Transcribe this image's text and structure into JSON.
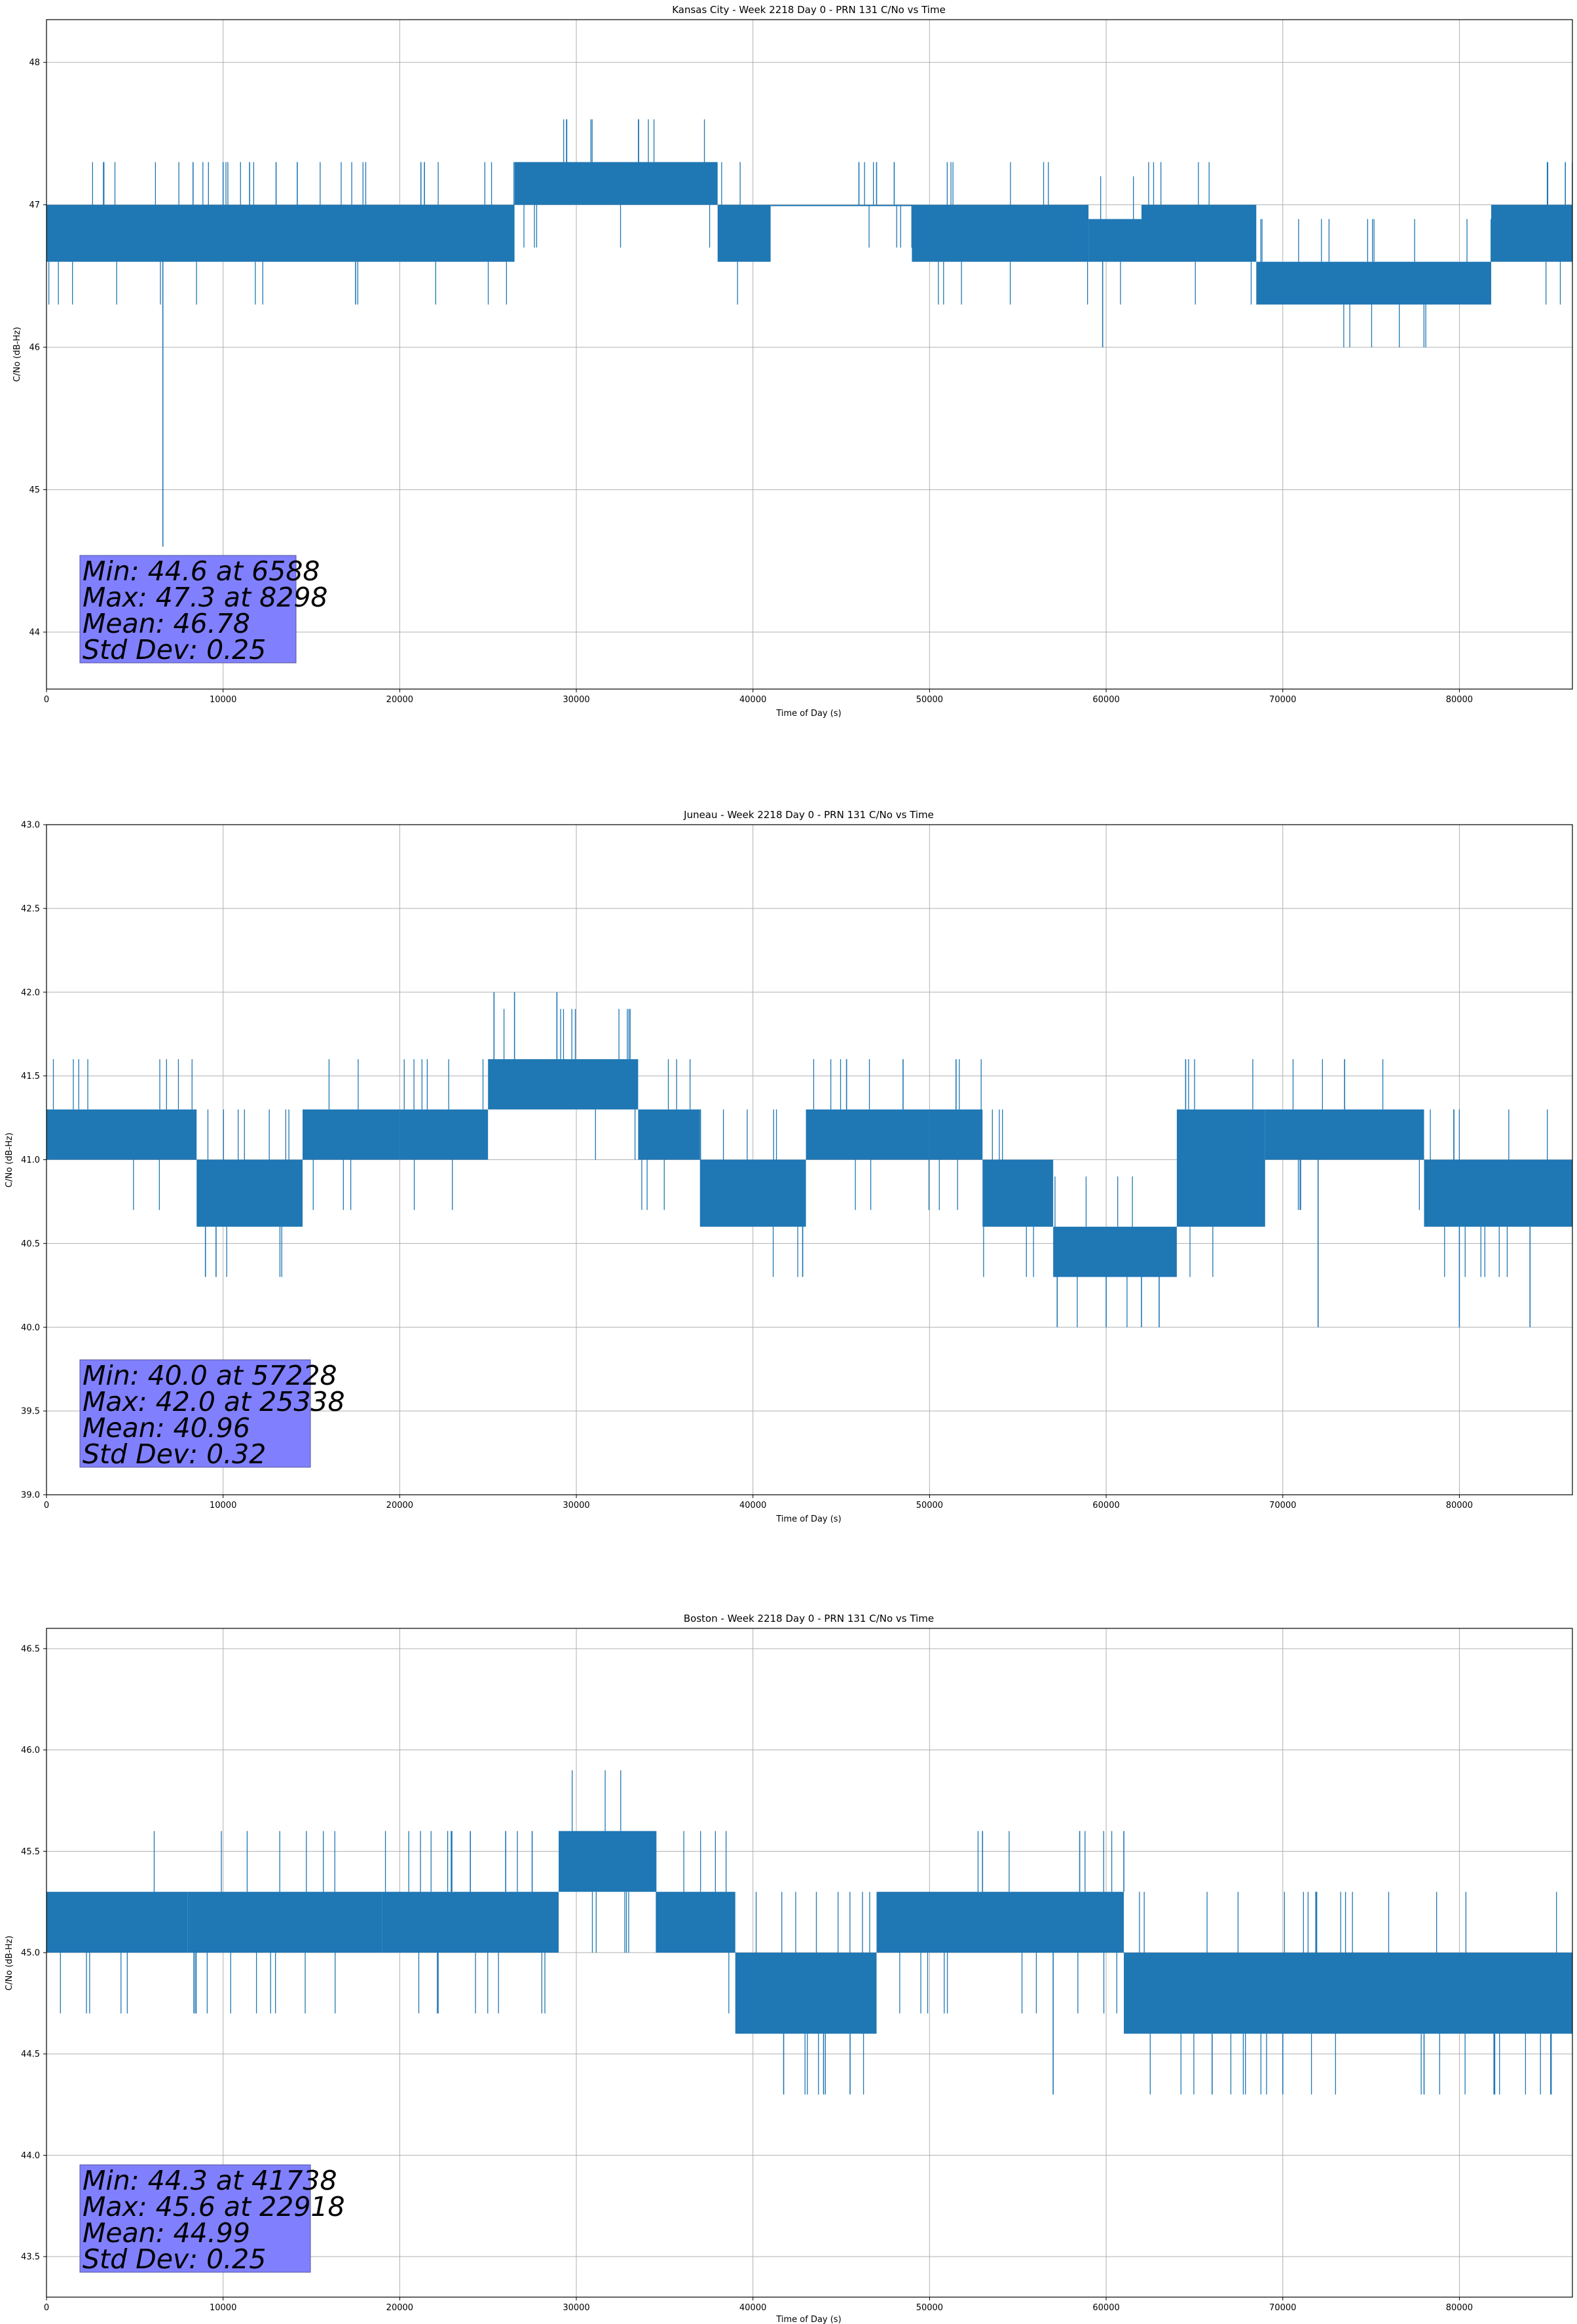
{
  "figure": {
    "line_color": "#1f77b4",
    "grid_color": "#b0b0b0",
    "stats_box_color": "#8080ff"
  },
  "chart_data": [
    {
      "type": "line",
      "title": "Kansas City - Week 2218 Day 0 - PRN 131 C/No vs Time",
      "xlabel": "Time of Day (s)",
      "ylabel": "C/No (dB-Hz)",
      "xlim": [
        0,
        86400
      ],
      "ylim": [
        43.6,
        48.3
      ],
      "xticks": [
        0,
        10000,
        20000,
        30000,
        40000,
        50000,
        60000,
        70000,
        80000
      ],
      "xtick_labels": [
        "0",
        "10000",
        "20000",
        "30000",
        "40000",
        "50000",
        "60000",
        "70000",
        "80000"
      ],
      "yticks": [
        44,
        45,
        46,
        47,
        48
      ],
      "ytick_labels": [
        "44",
        "45",
        "46",
        "47",
        "48"
      ],
      "grid": true,
      "series": [
        {
          "bands": [
            {
              "x": [
                0,
                26500
              ],
              "y": [
                46.6,
                47.0
              ]
            },
            {
              "x": [
                26500,
                38000
              ],
              "y": [
                47.0,
                47.3
              ]
            },
            {
              "x": [
                38000,
                41000
              ],
              "y": [
                46.6,
                47.0
              ]
            },
            {
              "x": [
                41000,
                49000
              ],
              "y": [
                47.0,
                47.0
              ]
            },
            {
              "x": [
                49000,
                59000
              ],
              "y": [
                46.6,
                47.0
              ]
            },
            {
              "x": [
                59000,
                62000
              ],
              "y": [
                46.6,
                46.9
              ]
            },
            {
              "x": [
                62000,
                68500
              ],
              "y": [
                46.6,
                47.0
              ]
            },
            {
              "x": [
                68500,
                81800
              ],
              "y": [
                46.3,
                46.6
              ]
            },
            {
              "x": [
                81800,
                86400
              ],
              "y": [
                46.6,
                47.0
              ]
            }
          ],
          "spikes": [
            {
              "x": 6588,
              "y": 44.6
            },
            {
              "x": 59800,
              "y": 46.0
            },
            {
              "x": 17500,
              "y": 46.3
            },
            {
              "x": 8298,
              "y": 47.3
            },
            {
              "x": 10000,
              "y": 47.3
            },
            {
              "x": 11500,
              "y": 47.3
            },
            {
              "x": 13000,
              "y": 47.3
            },
            {
              "x": 14200,
              "y": 47.3
            },
            {
              "x": 21200,
              "y": 47.3
            },
            {
              "x": 21400,
              "y": 47.3
            },
            {
              "x": 46000,
              "y": 47.3
            },
            {
              "x": 47000,
              "y": 47.3
            },
            {
              "x": 48000,
              "y": 47.3
            },
            {
              "x": 85000,
              "y": 47.3
            },
            {
              "x": 86000,
              "y": 47.3
            }
          ]
        }
      ],
      "stats": {
        "lines": [
          "Min: 44.6 at 6588",
          "Max: 47.3 at 8298",
          "Mean: 46.78",
          "Std Dev: 0.25"
        ]
      }
    },
    {
      "type": "line",
      "title": "Juneau - Week 2218 Day 0 - PRN 131 C/No vs Time",
      "xlabel": "Time of Day (s)",
      "ylabel": "C/No (dB-Hz)",
      "xlim": [
        0,
        86400
      ],
      "ylim": [
        39.0,
        43.0
      ],
      "xticks": [
        0,
        10000,
        20000,
        30000,
        40000,
        50000,
        60000,
        70000,
        80000
      ],
      "xtick_labels": [
        "0",
        "10000",
        "20000",
        "30000",
        "40000",
        "50000",
        "60000",
        "70000",
        "80000"
      ],
      "yticks": [
        39.0,
        39.5,
        40.0,
        40.5,
        41.0,
        41.5,
        42.0,
        42.5,
        43.0
      ],
      "ytick_labels": [
        "39.0",
        "39.5",
        "40.0",
        "40.5",
        "41.0",
        "41.5",
        "42.0",
        "42.5",
        "43.0"
      ],
      "grid": true,
      "series": [
        {
          "bands": [
            {
              "x": [
                0,
                8500
              ],
              "y": [
                41.0,
                41.3
              ]
            },
            {
              "x": [
                8500,
                14500
              ],
              "y": [
                40.6,
                41.0
              ]
            },
            {
              "x": [
                14500,
                20000
              ],
              "y": [
                41.0,
                41.3
              ]
            },
            {
              "x": [
                20000,
                25000
              ],
              "y": [
                41.0,
                41.3
              ]
            },
            {
              "x": [
                25000,
                33500
              ],
              "y": [
                41.3,
                41.6
              ]
            },
            {
              "x": [
                33500,
                37000
              ],
              "y": [
                41.0,
                41.3
              ]
            },
            {
              "x": [
                37000,
                43000
              ],
              "y": [
                40.6,
                41.0
              ]
            },
            {
              "x": [
                43000,
                50000
              ],
              "y": [
                41.0,
                41.3
              ]
            },
            {
              "x": [
                50000,
                53000
              ],
              "y": [
                41.0,
                41.3
              ]
            },
            {
              "x": [
                53000,
                57000
              ],
              "y": [
                40.6,
                41.0
              ]
            },
            {
              "x": [
                57000,
                64000
              ],
              "y": [
                40.3,
                40.6
              ]
            },
            {
              "x": [
                64000,
                69000
              ],
              "y": [
                40.6,
                41.3
              ]
            },
            {
              "x": [
                69000,
                78000
              ],
              "y": [
                41.0,
                41.3
              ]
            },
            {
              "x": [
                78000,
                86400
              ],
              "y": [
                40.6,
                41.0
              ]
            }
          ],
          "spikes": [
            {
              "x": 57228,
              "y": 40.0
            },
            {
              "x": 60000,
              "y": 40.0
            },
            {
              "x": 62000,
              "y": 40.0
            },
            {
              "x": 63000,
              "y": 40.0
            },
            {
              "x": 72000,
              "y": 40.0
            },
            {
              "x": 80000,
              "y": 40.0
            },
            {
              "x": 84000,
              "y": 40.0
            },
            {
              "x": 25338,
              "y": 42.0
            },
            {
              "x": 26500,
              "y": 42.0
            },
            {
              "x": 28900,
              "y": 42.0
            },
            {
              "x": 9000,
              "y": 40.3
            },
            {
              "x": 9600,
              "y": 40.3
            },
            {
              "x": 45300,
              "y": 41.6
            },
            {
              "x": 48500,
              "y": 41.6
            },
            {
              "x": 51500,
              "y": 41.6
            },
            {
              "x": 64500,
              "y": 41.6
            },
            {
              "x": 73500,
              "y": 41.6
            }
          ]
        }
      ],
      "stats": {
        "lines": [
          "Min: 40.0 at 57228",
          "Max: 42.0 at 25338",
          "Mean: 40.96",
          "Std Dev: 0.32"
        ]
      }
    },
    {
      "type": "line",
      "title": "Boston - Week 2218 Day 0 - PRN 131 C/No vs Time",
      "xlabel": "Time of Day (s)",
      "ylabel": "C/No (dB-Hz)",
      "xlim": [
        0,
        86400
      ],
      "ylim": [
        43.3,
        46.6
      ],
      "xticks": [
        0,
        10000,
        20000,
        30000,
        40000,
        50000,
        60000,
        70000,
        80000
      ],
      "xtick_labels": [
        "0",
        "10000",
        "20000",
        "30000",
        "40000",
        "50000",
        "60000",
        "70000",
        "80000"
      ],
      "yticks": [
        43.5,
        44.0,
        44.5,
        45.0,
        45.5,
        46.0,
        46.5
      ],
      "ytick_labels": [
        "43.5",
        "44.0",
        "44.5",
        "45.0",
        "45.5",
        "46.0",
        "46.5"
      ],
      "grid": true,
      "series": [
        {
          "bands": [
            {
              "x": [
                0,
                8000
              ],
              "y": [
                45.0,
                45.3
              ]
            },
            {
              "x": [
                8000,
                19000
              ],
              "y": [
                45.0,
                45.3
              ]
            },
            {
              "x": [
                19000,
                29000
              ],
              "y": [
                45.0,
                45.3
              ]
            },
            {
              "x": [
                29000,
                34500
              ],
              "y": [
                45.3,
                45.6
              ]
            },
            {
              "x": [
                34500,
                39000
              ],
              "y": [
                45.0,
                45.3
              ]
            },
            {
              "x": [
                39000,
                47000
              ],
              "y": [
                44.6,
                45.0
              ]
            },
            {
              "x": [
                47000,
                61000
              ],
              "y": [
                45.0,
                45.3
              ]
            },
            {
              "x": [
                61000,
                86400
              ],
              "y": [
                44.6,
                45.0
              ]
            }
          ],
          "spikes": [
            {
              "x": 41738,
              "y": 44.3
            },
            {
              "x": 44000,
              "y": 44.3
            },
            {
              "x": 45500,
              "y": 44.3
            },
            {
              "x": 57000,
              "y": 44.3
            },
            {
              "x": 66000,
              "y": 44.3
            },
            {
              "x": 70000,
              "y": 44.3
            },
            {
              "x": 78000,
              "y": 44.3
            },
            {
              "x": 82000,
              "y": 44.3
            },
            {
              "x": 22918,
              "y": 45.6
            },
            {
              "x": 24000,
              "y": 45.6
            },
            {
              "x": 26000,
              "y": 45.6
            },
            {
              "x": 27500,
              "y": 45.6
            },
            {
              "x": 53000,
              "y": 45.6
            },
            {
              "x": 58500,
              "y": 45.6
            },
            {
              "x": 61000,
              "y": 45.6
            }
          ]
        }
      ],
      "stats": {
        "lines": [
          "Min: 44.3 at 41738",
          "Max: 45.6 at 22918",
          "Mean: 44.99",
          "Std Dev: 0.25"
        ]
      }
    }
  ]
}
